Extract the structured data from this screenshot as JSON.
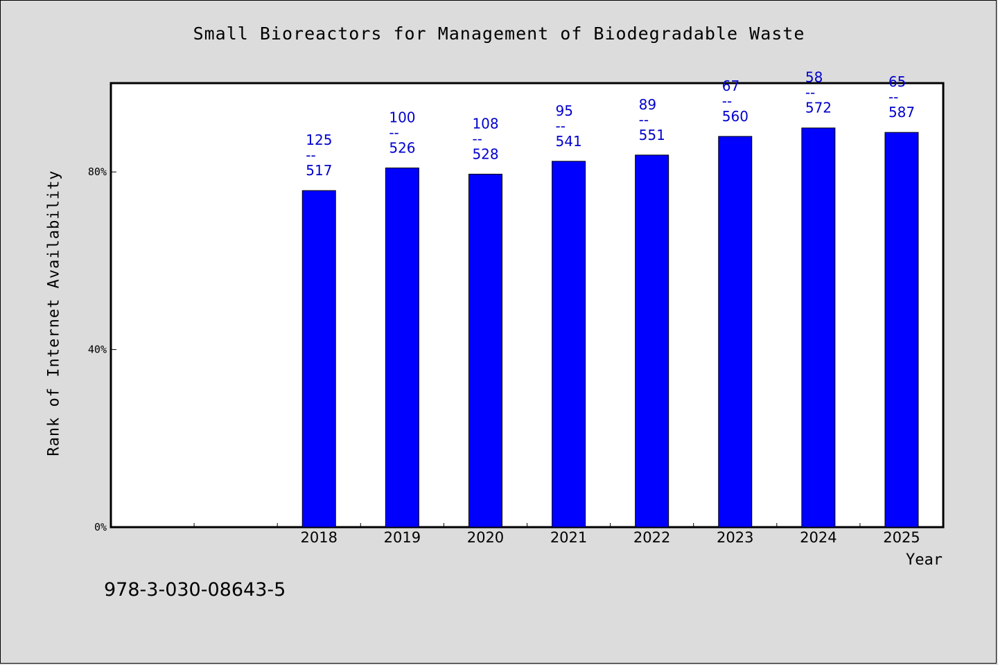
{
  "chart_data": {
    "type": "bar",
    "title": "Small Bioreactors for Management of Biodegradable Waste",
    "xlabel": "Year",
    "ylabel": "Rank of Internet Availability",
    "categories": [
      "",
      "",
      "2018",
      "2019",
      "2020",
      "2021",
      "2022",
      "2023",
      "2024",
      "2025"
    ],
    "values": [
      null,
      null,
      75.8,
      80.9,
      79.5,
      82.4,
      83.8,
      88.0,
      89.9,
      88.9
    ],
    "bar_labels": [
      null,
      null,
      {
        "top": "125",
        "sep": "--",
        "bottom": "517"
      },
      {
        "top": "100",
        "sep": "--",
        "bottom": "526"
      },
      {
        "top": "108",
        "sep": "--",
        "bottom": "528"
      },
      {
        "top": "95",
        "sep": "--",
        "bottom": "541"
      },
      {
        "top": "89",
        "sep": "--",
        "bottom": "551"
      },
      {
        "top": "67",
        "sep": "--",
        "bottom": "560"
      },
      {
        "top": "58",
        "sep": "--",
        "bottom": "572"
      },
      {
        "top": "65",
        "sep": "--",
        "bottom": "587"
      }
    ],
    "ylim": [
      0,
      100
    ],
    "yticks": [
      0,
      40,
      80
    ],
    "ytick_labels": [
      "0%",
      "40%",
      "80%"
    ],
    "grid": false,
    "bar_color": "#0000ff",
    "label_color": "#0000cc"
  },
  "footer": {
    "isbn": "978-3-030-08643-5"
  }
}
